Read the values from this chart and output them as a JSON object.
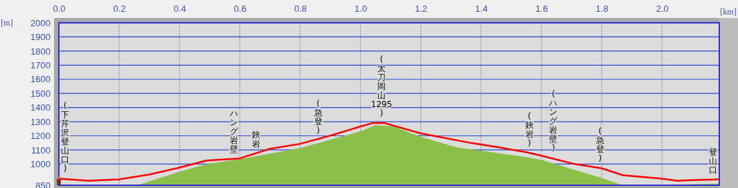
{
  "chart_data": {
    "type": "line",
    "xlabel": "[km]",
    "ylabel": "[m]",
    "xlim": [
      0,
      2.19
    ],
    "xticks": [
      {
        "value": 0,
        "label": "0.0"
      },
      {
        "value": 0.2,
        "label": "0.2"
      },
      {
        "value": 0.4,
        "label": "0.4"
      },
      {
        "value": 0.6,
        "label": "0.6"
      },
      {
        "value": 0.8,
        "label": "0.8"
      },
      {
        "value": 1.0,
        "label": "1.0"
      },
      {
        "value": 1.2,
        "label": "1.2"
      },
      {
        "value": 1.4,
        "label": "1.4"
      },
      {
        "value": 1.6,
        "label": "1.6"
      },
      {
        "value": 1.8,
        "label": "1.8"
      },
      {
        "value": 2.0,
        "label": "2.0"
      }
    ],
    "ylim": [
      850,
      2000
    ],
    "yticks": [
      850,
      1000,
      1100,
      1200,
      1300,
      1400,
      1500,
      1600,
      1700,
      1800,
      1900,
      2000
    ],
    "grid": true,
    "series": [
      {
        "type": "area",
        "color": "#8cbf4a",
        "x": [
          0,
          0.08,
          0.2,
          0.26,
          0.4,
          0.49,
          0.6,
          0.8,
          1.0,
          1.05,
          1.11,
          1.2,
          1.32,
          1.55,
          1.6,
          1.8,
          1.87,
          1.94,
          2.1,
          2.19
        ],
        "values": [
          857,
          852,
          850,
          850,
          946,
          1000,
          1035,
          1113,
          1232,
          1276,
          1266,
          1192,
          1118,
          1049,
          1030,
          901,
          850,
          850,
          857,
          862
        ]
      },
      {
        "type": "line",
        "color": "#ff0000",
        "x": [
          0,
          0.1,
          0.2,
          0.3,
          0.4,
          0.49,
          0.6,
          0.7,
          0.8,
          0.91,
          1.0,
          1.04,
          1.08,
          1.2,
          1.37,
          1.46,
          1.55,
          1.6,
          1.71,
          1.8,
          1.87,
          2.0,
          2.05,
          2.19
        ],
        "values": [
          897,
          882,
          892,
          926,
          975,
          1025,
          1040,
          1108,
          1143,
          1207,
          1266,
          1290,
          1290,
          1217,
          1148,
          1118,
          1084,
          1059,
          1000,
          970,
          921,
          897,
          882,
          892
        ]
      }
    ],
    "annotations": [
      {
        "text": "(下芹沢登山口)",
        "x": 0,
        "y": 897
      },
      {
        "text": "ハング岩壁",
        "x": 0.58,
        "y": 1035
      },
      {
        "text": "鋏岩",
        "x": 0.655,
        "y": 1075
      },
      {
        "text": "(急登)",
        "x": 0.86,
        "y": 1170
      },
      {
        "text": "(太刀岡山1295)",
        "x": 1.07,
        "y": 1290
      },
      {
        "text": "(鋏岩)",
        "x": 1.56,
        "y": 1080
      },
      {
        "text": "(ハング岩壁)",
        "x": 1.64,
        "y": 1045
      },
      {
        "text": "(急登)",
        "x": 1.795,
        "y": 972
      },
      {
        "text": "登山口",
        "x": 2.17,
        "y": 890
      }
    ]
  }
}
